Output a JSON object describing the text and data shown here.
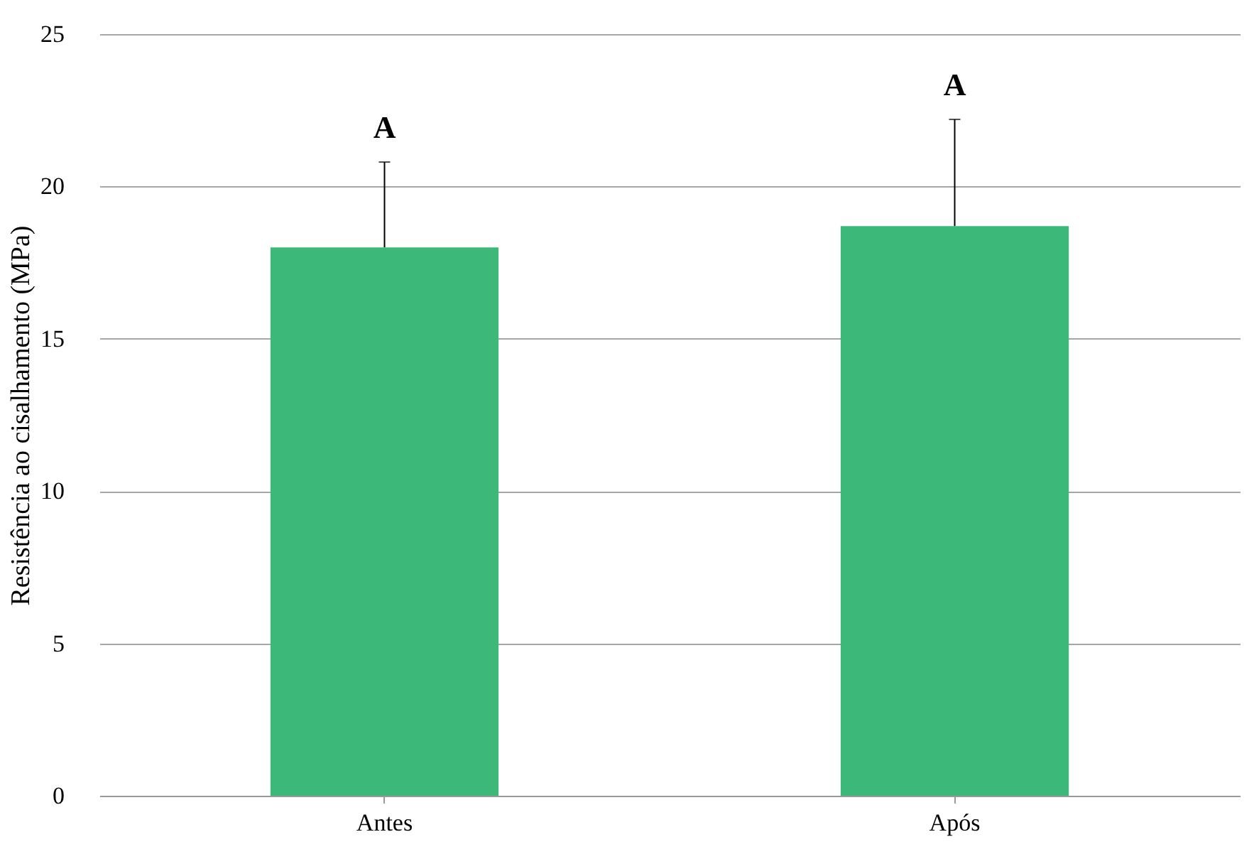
{
  "chart_data": {
    "type": "bar",
    "ylabel": "Resistência ao cisalhamento (MPa)",
    "categories": [
      "Antes",
      "Após"
    ],
    "values": [
      18.0,
      18.7
    ],
    "errors": [
      [
        18.0,
        20.8
      ],
      [
        18.7,
        22.2
      ]
    ],
    "color": "#3cb878",
    "ylim": [
      0,
      25
    ],
    "yticks": [
      0,
      5,
      10,
      15,
      20,
      25
    ],
    "grid": "y",
    "annotations": [
      "A",
      "A"
    ]
  }
}
